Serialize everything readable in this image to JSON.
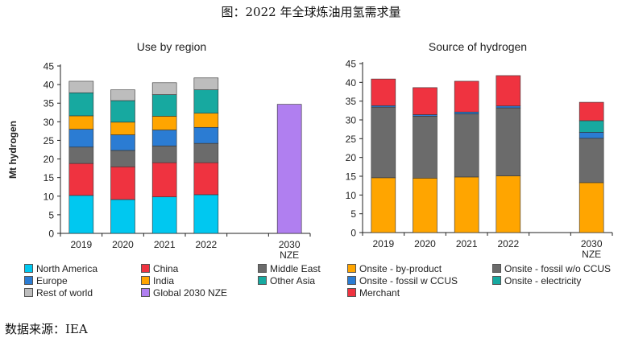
{
  "figure_title": "图：2022 年全球炼油用氢需求量",
  "source_note": "数据来源：IEA",
  "chart_data": [
    {
      "type": "bar",
      "stacked": true,
      "title": "Use by region",
      "ylabel": "Mt hydrogen",
      "xlabel": "",
      "ylim": [
        0,
        45
      ],
      "yticks": [
        0,
        5,
        10,
        15,
        20,
        25,
        30,
        35,
        40,
        45
      ],
      "categories": [
        "2019",
        "2020",
        "2021",
        "2022",
        "",
        "2030 NZE"
      ],
      "series": [
        {
          "name": "North America",
          "color": "#00c8f0",
          "values": [
            10.2,
            9.1,
            9.8,
            10.4,
            null,
            null
          ]
        },
        {
          "name": "China",
          "color": "#ef3340",
          "values": [
            8.6,
            8.8,
            9.2,
            8.6,
            null,
            null
          ]
        },
        {
          "name": "Middle East",
          "color": "#6b6b6b",
          "values": [
            4.4,
            4.4,
            4.5,
            5.2,
            null,
            null
          ]
        },
        {
          "name": "Europe",
          "color": "#2b7cd3",
          "values": [
            4.8,
            4.2,
            4.3,
            4.3,
            null,
            null
          ]
        },
        {
          "name": "India",
          "color": "#ffa500",
          "values": [
            3.6,
            3.4,
            3.7,
            3.8,
            null,
            null
          ]
        },
        {
          "name": "Other Asia",
          "color": "#17a9a0",
          "values": [
            6.2,
            5.8,
            5.8,
            6.3,
            null,
            null
          ]
        },
        {
          "name": "Rest of world",
          "color": "#bdbdbd",
          "values": [
            3.1,
            2.9,
            3.2,
            3.2,
            null,
            null
          ]
        },
        {
          "name": "Global 2030 NZE",
          "color": "#b07ff0",
          "values": [
            null,
            null,
            null,
            null,
            null,
            34.7
          ]
        }
      ]
    },
    {
      "type": "bar",
      "stacked": true,
      "title": "Source of hydrogen",
      "ylabel": "",
      "xlabel": "",
      "ylim": [
        0,
        45
      ],
      "yticks": [
        0,
        5,
        10,
        15,
        20,
        25,
        30,
        35,
        40,
        45
      ],
      "categories": [
        "2019",
        "2020",
        "2021",
        "2022",
        "",
        "2030 NZE"
      ],
      "series": [
        {
          "name": "Onsite - by-product",
          "color": "#ffa500",
          "values": [
            14.6,
            14.5,
            14.8,
            15.1,
            null,
            13.3
          ]
        },
        {
          "name": "Onsite - fossil w/o CCUS",
          "color": "#6b6b6b",
          "values": [
            18.8,
            16.5,
            16.8,
            18.1,
            null,
            11.8
          ]
        },
        {
          "name": "Onsite - fossil w CCUS",
          "color": "#2b7cd3",
          "values": [
            0.4,
            0.4,
            0.5,
            0.5,
            null,
            1.6
          ]
        },
        {
          "name": "Onsite - electricity",
          "color": "#17a9a0",
          "values": [
            0.0,
            0.0,
            0.0,
            0.0,
            null,
            3.1
          ]
        },
        {
          "name": "Merchant",
          "color": "#ef3340",
          "values": [
            7.1,
            7.2,
            8.2,
            8.1,
            null,
            4.9
          ]
        }
      ]
    }
  ]
}
